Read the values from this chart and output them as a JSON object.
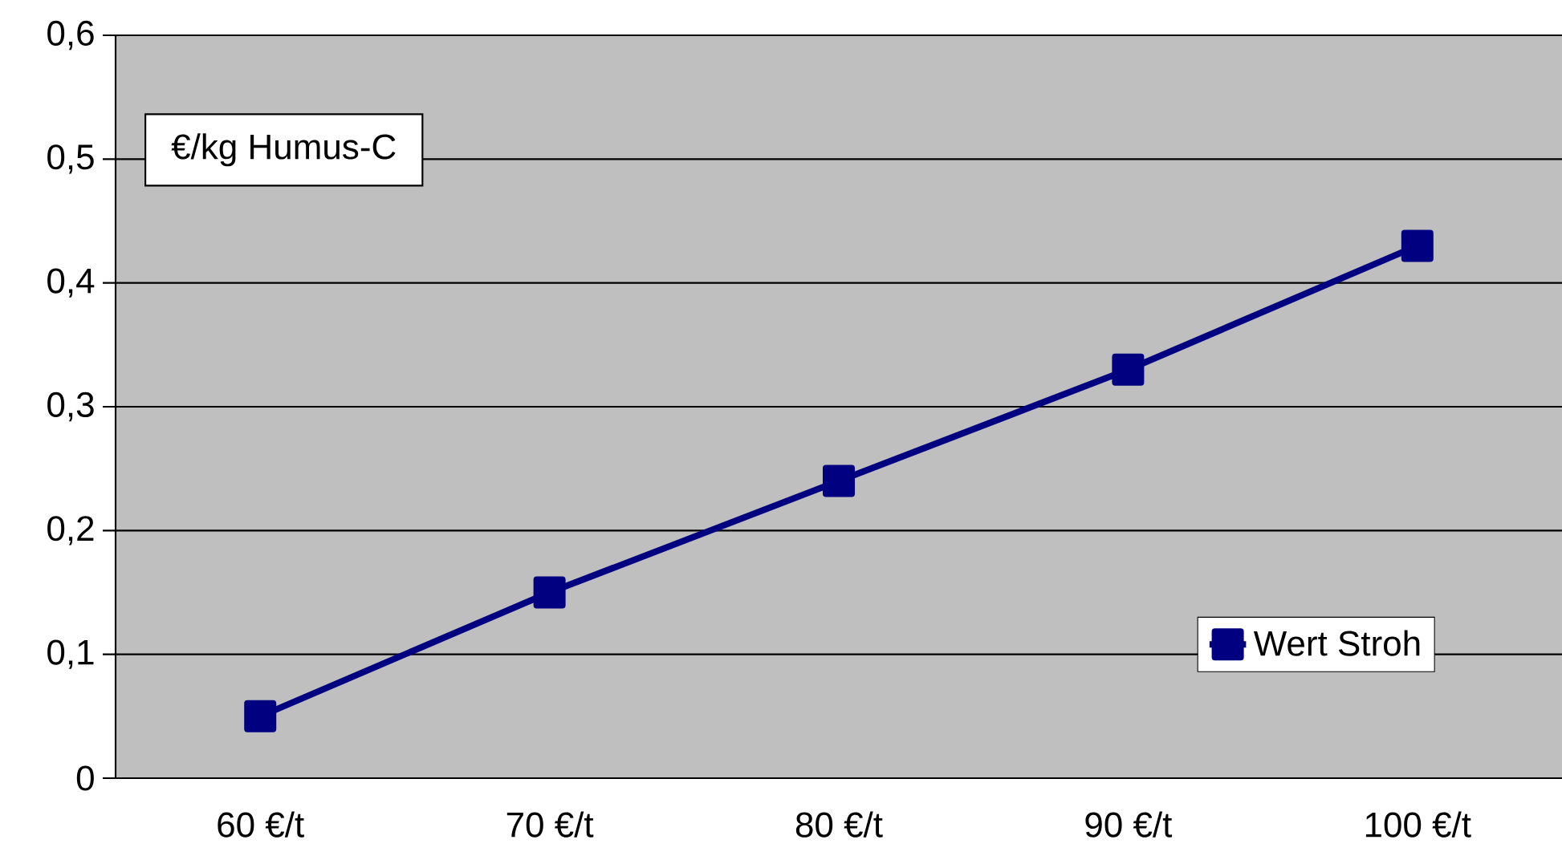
{
  "chart_data": {
    "type": "line",
    "ylabel": "€/kg Humus-C",
    "categories": [
      "60 €/t",
      "70 €/t",
      "80 €/t",
      "90 €/t",
      "100 €/t"
    ],
    "series": [
      {
        "name": "Wert Stroh",
        "color": "#000080",
        "values": [
          0.05,
          0.15,
          0.24,
          0.33,
          0.43
        ]
      }
    ],
    "ylim": [
      0,
      0.6
    ],
    "yticks": [
      {
        "value": 0,
        "label": "0"
      },
      {
        "value": 0.1,
        "label": "0,1"
      },
      {
        "value": 0.2,
        "label": "0,2"
      },
      {
        "value": 0.3,
        "label": "0,3"
      },
      {
        "value": 0.4,
        "label": "0,4"
      },
      {
        "value": 0.5,
        "label": "0,5"
      },
      {
        "value": 0.6,
        "label": "0,6"
      }
    ],
    "grid": "y",
    "legend": "right",
    "marker": "square",
    "line_style": "solid"
  }
}
